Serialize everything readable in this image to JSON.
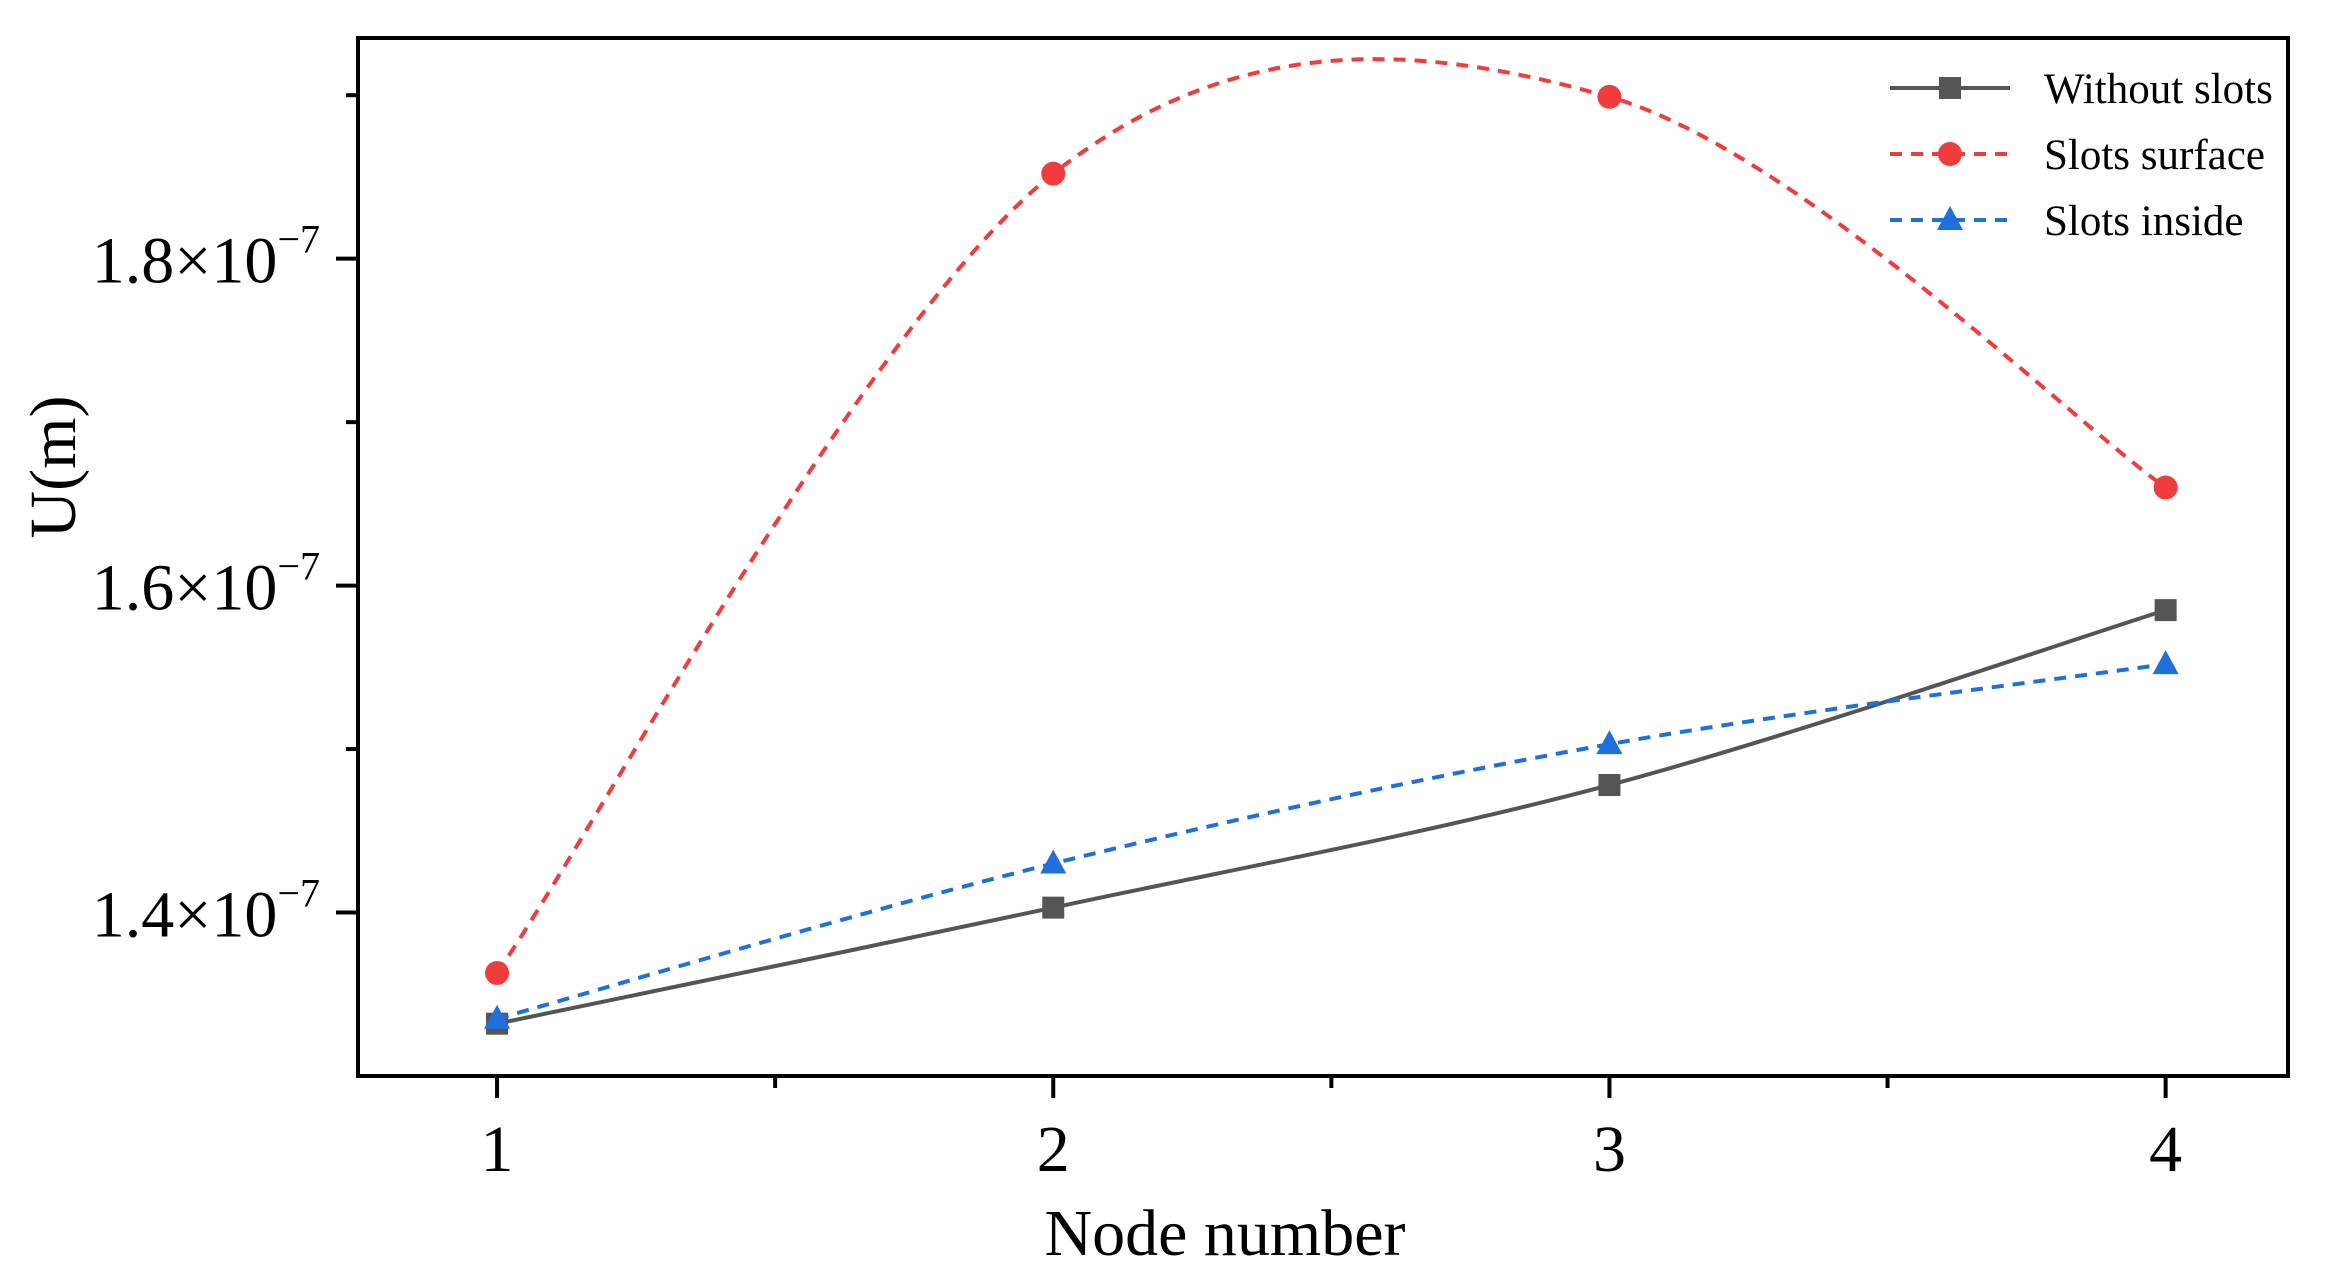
{
  "chart_data": {
    "type": "line",
    "title": "",
    "xlabel": "Node number",
    "ylabel": "U(m)",
    "x": [
      1,
      2,
      3,
      4
    ],
    "xticks": [
      "1",
      "2",
      "3",
      "4"
    ],
    "xlim": [
      0.75,
      4.22
    ],
    "ylim": [
      1.3e-07,
      1.935e-07
    ],
    "yticks": [
      {
        "value": 1.4e-07,
        "mantissa": "1.4×10",
        "exponent": "−7"
      },
      {
        "value": 1.6e-07,
        "mantissa": "1.6×10",
        "exponent": "−7"
      },
      {
        "value": 1.8e-07,
        "mantissa": "1.8×10",
        "exponent": "−7"
      }
    ],
    "grid": false,
    "legend_position": "top-right",
    "series": [
      {
        "name": "Without slots",
        "values": [
          1.332e-07,
          1.403e-07,
          1.478e-07,
          1.585e-07
        ],
        "color": "#555555",
        "dash": "solid",
        "marker": "square"
      },
      {
        "name": "Slots surface",
        "values": [
          1.363e-07,
          1.852e-07,
          1.899e-07,
          1.66e-07
        ],
        "color": "#f03c3c",
        "dash": "dashed",
        "marker": "circle"
      },
      {
        "name": "Slots inside",
        "values": [
          1.335e-07,
          1.43e-07,
          1.503e-07,
          1.552e-07
        ],
        "color": "#1f6fdc",
        "dash": "dashed",
        "marker": "triangle"
      }
    ]
  }
}
